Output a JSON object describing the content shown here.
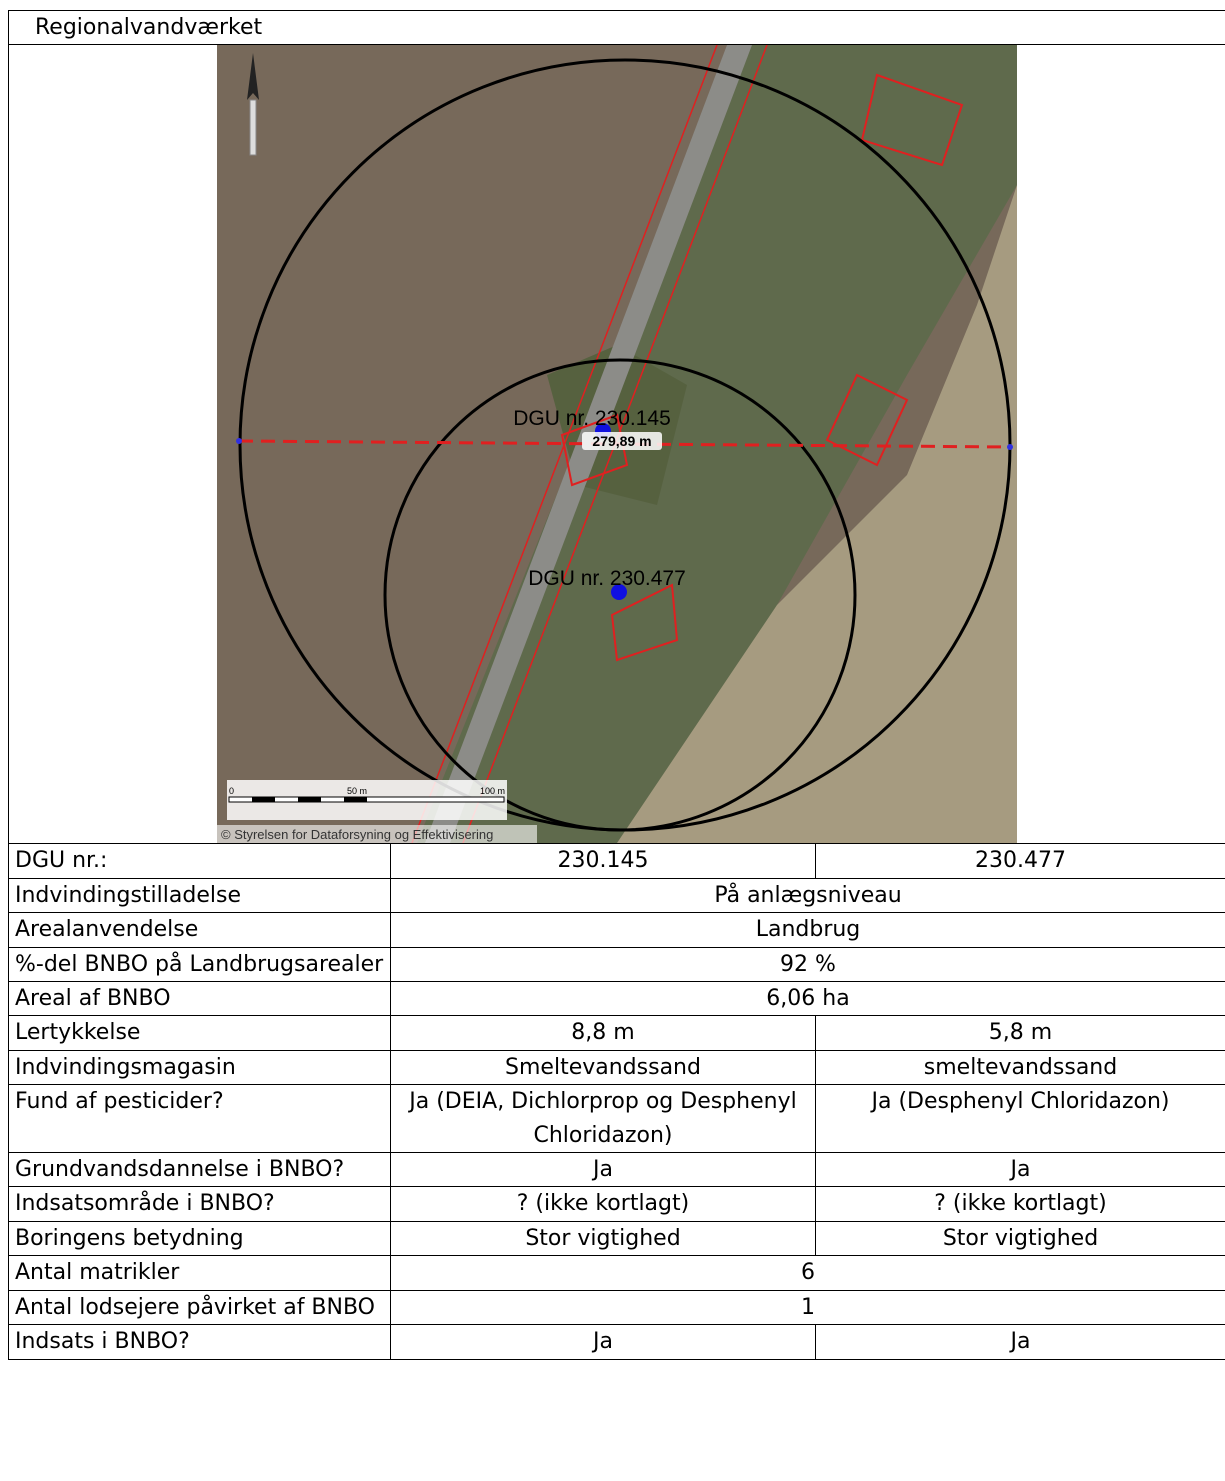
{
  "header": {
    "title": "Regionalvandværket"
  },
  "map": {
    "labels": [
      "DGU nr. 230.145",
      "DGU nr. 230.477"
    ],
    "distance": "279,89 m",
    "scale": [
      "0",
      "50 m",
      "100 m"
    ],
    "copyright": "© Styrelsen for Dataforsyning og Effektivisering"
  },
  "table": {
    "rows": [
      [
        "DGU nr.:",
        "230.145",
        "230.477"
      ],
      [
        "Indvindingstilladelse",
        "På anlægsniveau"
      ],
      [
        "Arealanvendelse",
        "Landbrug"
      ],
      [
        "%-del BNBO på Landbrugsarealer",
        "92 %"
      ],
      [
        "Areal af BNBO",
        "6,06 ha"
      ],
      [
        "Lertykkelse",
        "8,8 m",
        "5,8 m"
      ],
      [
        "Indvindingsmagasin",
        "Smeltevandssand",
        "smeltevandssand"
      ],
      [
        "Fund af pesticider?",
        "Ja (DEIA, Dichlorprop og Desphenyl Chloridazon)",
        "Ja (Desphenyl Chloridazon)"
      ],
      [
        "Grundvandsdannelse i BNBO?",
        "Ja",
        "Ja"
      ],
      [
        "Indsatsområde i BNBO?",
        "? (ikke kortlagt)",
        "? (ikke kortlagt)"
      ],
      [
        "Boringens betydning",
        "Stor vigtighed",
        "Stor vigtighed"
      ],
      [
        "Antal matrikler",
        "6"
      ],
      [
        "Antal lodsejere påvirket af BNBO",
        "1"
      ],
      [
        "Indsats i BNBO?",
        "Ja",
        "Ja"
      ]
    ]
  }
}
